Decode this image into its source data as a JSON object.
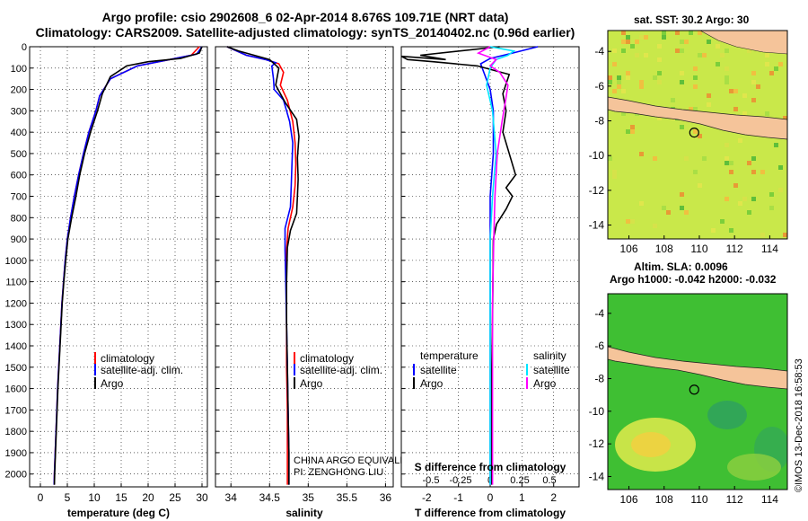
{
  "header": {
    "line1": "Argo profile: csio 2902608_6 02-Apr-2014 8.676S 109.71E (NRT data)",
    "line2": "Climatology: CARS2009. Satellite-adjusted climatology: synTS_20140402.nc (0.96d earlier)"
  },
  "side_stamp": "©IMOS 13-Dec-2018 16:58:53",
  "colors": {
    "climatology": "#ff0000",
    "satellite": "#0000ff",
    "argo": "#000000",
    "sat_salinity": "#00e5ff",
    "argo_salinity": "#ff00ff",
    "land": "#f5c49a"
  },
  "chart_data": [
    {
      "type": "line",
      "title": "",
      "xlabel": "temperature (deg C)",
      "ylabel": "",
      "xlim": [
        -2,
        31
      ],
      "ylim": [
        2060,
        0
      ],
      "xticks": [
        0,
        5,
        10,
        15,
        20,
        25,
        30
      ],
      "yticks": [
        0,
        100,
        200,
        300,
        400,
        500,
        600,
        700,
        800,
        900,
        1000,
        1100,
        1200,
        1300,
        1400,
        1500,
        1600,
        1700,
        1800,
        1900,
        2000
      ],
      "legend": [
        "climatology",
        "satellite-adj. clim.",
        "Argo"
      ],
      "series": [
        {
          "name": "climatology",
          "color": "#ff0000",
          "points": [
            [
              29.5,
              0
            ],
            [
              28,
              40
            ],
            [
              24,
              60
            ],
            [
              18,
              90
            ],
            [
              13,
              150
            ],
            [
              11,
              230
            ],
            [
              10.3,
              300
            ],
            [
              9,
              400
            ],
            [
              8,
              500
            ],
            [
              7.1,
              600
            ],
            [
              6.3,
              700
            ],
            [
              5.6,
              800
            ],
            [
              5,
              900
            ],
            [
              4.6,
              1000
            ],
            [
              4.3,
              1100
            ],
            [
              4,
              1200
            ],
            [
              3.8,
              1300
            ],
            [
              3.6,
              1400
            ],
            [
              3.4,
              1500
            ],
            [
              3.2,
              1600
            ],
            [
              3.05,
              1700
            ],
            [
              2.9,
              1800
            ],
            [
              2.75,
              1900
            ],
            [
              2.6,
              2000
            ],
            [
              2.55,
              2050
            ]
          ]
        },
        {
          "name": "satellite-adj. clim.",
          "color": "#0000ff",
          "points": [
            [
              30,
              0
            ],
            [
              29,
              35
            ],
            [
              24,
              60
            ],
            [
              18,
              90
            ],
            [
              13,
              150
            ],
            [
              11,
              230
            ],
            [
              10.3,
              300
            ],
            [
              9,
              400
            ],
            [
              8,
              500
            ],
            [
              7.1,
              600
            ],
            [
              6.3,
              700
            ],
            [
              5.6,
              800
            ],
            [
              5,
              900
            ],
            [
              4.6,
              1000
            ],
            [
              4.3,
              1100
            ],
            [
              4,
              1200
            ],
            [
              3.8,
              1300
            ],
            [
              3.6,
              1400
            ],
            [
              3.4,
              1500
            ],
            [
              3.2,
              1600
            ],
            [
              3.05,
              1700
            ],
            [
              2.9,
              1800
            ],
            [
              2.75,
              1900
            ],
            [
              2.6,
              2000
            ],
            [
              2.55,
              2050
            ]
          ]
        },
        {
          "name": "Argo",
          "color": "#000000",
          "points": [
            [
              30,
              0
            ],
            [
              29.5,
              30
            ],
            [
              26,
              55
            ],
            [
              20,
              70
            ],
            [
              16,
              90
            ],
            [
              13,
              140
            ],
            [
              11.5,
              220
            ],
            [
              10.6,
              300
            ],
            [
              9.3,
              400
            ],
            [
              8.2,
              500
            ],
            [
              7.3,
              600
            ],
            [
              6.6,
              700
            ],
            [
              5.8,
              800
            ],
            [
              5.1,
              900
            ],
            [
              4.7,
              1000
            ],
            [
              4.35,
              1100
            ],
            [
              4.05,
              1200
            ],
            [
              3.85,
              1300
            ],
            [
              3.65,
              1400
            ],
            [
              3.45,
              1500
            ],
            [
              3.25,
              1600
            ],
            [
              3.1,
              1700
            ],
            [
              2.95,
              1800
            ],
            [
              2.8,
              1900
            ],
            [
              2.65,
              2000
            ],
            [
              2.6,
              2050
            ]
          ]
        }
      ]
    },
    {
      "type": "line",
      "title": "",
      "xlabel": "salinity",
      "ylabel": "",
      "xlim": [
        33.8,
        36.1
      ],
      "ylim": [
        2060,
        0
      ],
      "xticks": [
        34,
        34.5,
        35,
        35.5,
        36
      ],
      "legend": [
        "climatology",
        "satellite-adj. clim.",
        "Argo"
      ],
      "annotations": [
        "CHINA ARGO EQUIVALENT",
        "PI: ZENGHONG LIU"
      ],
      "series": [
        {
          "name": "climatology",
          "color": "#ff0000",
          "points": [
            [
              33.95,
              0
            ],
            [
              34.2,
              40
            ],
            [
              34.45,
              60
            ],
            [
              34.62,
              80
            ],
            [
              34.68,
              120
            ],
            [
              34.64,
              180
            ],
            [
              34.73,
              250
            ],
            [
              34.8,
              350
            ],
            [
              34.83,
              450
            ],
            [
              34.84,
              550
            ],
            [
              34.83,
              650
            ],
            [
              34.8,
              750
            ],
            [
              34.74,
              850
            ],
            [
              34.72,
              950
            ],
            [
              34.72,
              1100
            ],
            [
              34.72,
              1300
            ],
            [
              34.72,
              1500
            ],
            [
              34.73,
              1700
            ],
            [
              34.73,
              1900
            ],
            [
              34.73,
              2050
            ]
          ]
        },
        {
          "name": "satellite-adj. clim.",
          "color": "#0000ff",
          "points": [
            [
              33.95,
              0
            ],
            [
              34.2,
              40
            ],
            [
              34.45,
              60
            ],
            [
              34.58,
              75
            ],
            [
              34.53,
              90
            ],
            [
              34.55,
              150
            ],
            [
              34.56,
              200
            ],
            [
              34.68,
              250
            ],
            [
              34.76,
              350
            ],
            [
              34.8,
              450
            ],
            [
              34.79,
              550
            ],
            [
              34.78,
              650
            ],
            [
              34.77,
              750
            ],
            [
              34.7,
              850
            ],
            [
              34.7,
              950
            ],
            [
              34.71,
              1100
            ],
            [
              34.72,
              1300
            ],
            [
              34.73,
              1500
            ],
            [
              34.74,
              1700
            ],
            [
              34.75,
              1900
            ],
            [
              34.75,
              2050
            ]
          ]
        },
        {
          "name": "Argo",
          "color": "#000000",
          "points": [
            [
              33.95,
              0
            ],
            [
              34.1,
              20
            ],
            [
              34.3,
              40
            ],
            [
              34.5,
              60
            ],
            [
              34.62,
              100
            ],
            [
              34.58,
              180
            ],
            [
              34.7,
              260
            ],
            [
              34.85,
              340
            ],
            [
              34.88,
              420
            ],
            [
              34.86,
              520
            ],
            [
              34.87,
              620
            ],
            [
              34.86,
              700
            ],
            [
              34.85,
              780
            ],
            [
              34.77,
              860
            ],
            [
              34.73,
              940
            ],
            [
              34.72,
              1100
            ],
            [
              34.72,
              1300
            ],
            [
              34.73,
              1500
            ],
            [
              34.74,
              1700
            ],
            [
              34.75,
              1900
            ],
            [
              34.75,
              2050
            ]
          ]
        }
      ]
    },
    {
      "type": "line",
      "title": "",
      "xlabel": "T difference from climatology",
      "xlabel2": "S difference from climatology",
      "xlim": [
        -2.8,
        2.8
      ],
      "xlim2": [
        -0.75,
        0.75
      ],
      "ylim": [
        2060,
        0
      ],
      "xticks": [
        -2,
        -1,
        0,
        1,
        2
      ],
      "xticks2": [
        -0.5,
        -0.25,
        0,
        0.25,
        0.5
      ],
      "xticks2_labels": [
        "-0.5",
        "-0.25",
        "0",
        "0.25",
        "0.5"
      ],
      "legend_left_title": "temperature",
      "legend_right_title": "salinity",
      "legend": [
        "satellite",
        "Argo",
        "satellite",
        "Argo"
      ],
      "series": [
        {
          "name": "T satellite",
          "color": "#0000ff",
          "axis": "T",
          "points": [
            [
              1.5,
              0
            ],
            [
              0.7,
              30
            ],
            [
              0,
              55
            ],
            [
              -0.3,
              80
            ],
            [
              -0.2,
              120
            ],
            [
              0,
              200
            ],
            [
              0.1,
              300
            ],
            [
              0.1,
              500
            ],
            [
              0,
              700
            ],
            [
              0,
              900
            ],
            [
              0,
              1200
            ],
            [
              0,
              1500
            ],
            [
              0,
              1800
            ],
            [
              0,
              2050
            ]
          ]
        },
        {
          "name": "T Argo",
          "color": "#000000",
          "axis": "T",
          "points": [
            [
              0.3,
              0
            ],
            [
              -2.2,
              40
            ],
            [
              -1.4,
              60
            ],
            [
              -2.8,
              45
            ],
            [
              -2.6,
              60
            ],
            [
              -1.8,
              70
            ],
            [
              -0.4,
              90
            ],
            [
              0.6,
              130
            ],
            [
              0.4,
              220
            ],
            [
              0.5,
              300
            ],
            [
              0.4,
              400
            ],
            [
              0.8,
              600
            ],
            [
              0.5,
              660
            ],
            [
              0.7,
              700
            ],
            [
              0.5,
              760
            ],
            [
              0.2,
              830
            ],
            [
              0.1,
              900
            ],
            [
              0.08,
              1200
            ],
            [
              0.05,
              1500
            ],
            [
              0.05,
              1800
            ],
            [
              0.05,
              2050
            ]
          ]
        },
        {
          "name": "S satellite",
          "color": "#00e5ff",
          "axis": "S",
          "points": [
            [
              0,
              0
            ],
            [
              0.2,
              20
            ],
            [
              0.15,
              40
            ],
            [
              0.05,
              60
            ],
            [
              0,
              100
            ],
            [
              -0.03,
              180
            ],
            [
              0.02,
              300
            ],
            [
              0.05,
              500
            ],
            [
              0.02,
              700
            ],
            [
              0,
              900
            ],
            [
              0,
              1200
            ],
            [
              0,
              1500
            ],
            [
              0,
              1800
            ],
            [
              0,
              2050
            ]
          ]
        },
        {
          "name": "S Argo",
          "color": "#ff00ff",
          "axis": "S",
          "points": [
            [
              0,
              0
            ],
            [
              -0.1,
              30
            ],
            [
              0.05,
              60
            ],
            [
              0,
              90
            ],
            [
              0.08,
              120
            ],
            [
              0.15,
              180
            ],
            [
              0.13,
              250
            ],
            [
              0.1,
              350
            ],
            [
              0.06,
              500
            ],
            [
              0.04,
              700
            ],
            [
              0.03,
              900
            ],
            [
              0.02,
              1200
            ],
            [
              0.02,
              1500
            ],
            [
              0.02,
              1800
            ],
            [
              0.02,
              2050
            ]
          ]
        }
      ]
    }
  ],
  "maps": [
    {
      "title": "sat. SST: 30.2  Argo: 30",
      "xticks": [
        106,
        108,
        110,
        112,
        114
      ],
      "yticks": [
        -4,
        -6,
        -8,
        -10,
        -12,
        -14
      ],
      "xlim": [
        104.8,
        115
      ],
      "ylim": [
        -14.8,
        -2.8
      ],
      "argo_lon": 109.71,
      "argo_lat": -8.676
    },
    {
      "title": "Altim. SLA: 0.0096",
      "subtitle": "Argo h1000: -0.042 h2000: -0.032",
      "xticks": [
        106,
        108,
        110,
        112,
        114
      ],
      "yticks": [
        -4,
        -6,
        -8,
        -10,
        -12,
        -14
      ],
      "xlim": [
        104.8,
        115
      ],
      "ylim": [
        -14.8,
        -2.8
      ],
      "argo_lon": 109.71,
      "argo_lat": -8.676
    }
  ]
}
